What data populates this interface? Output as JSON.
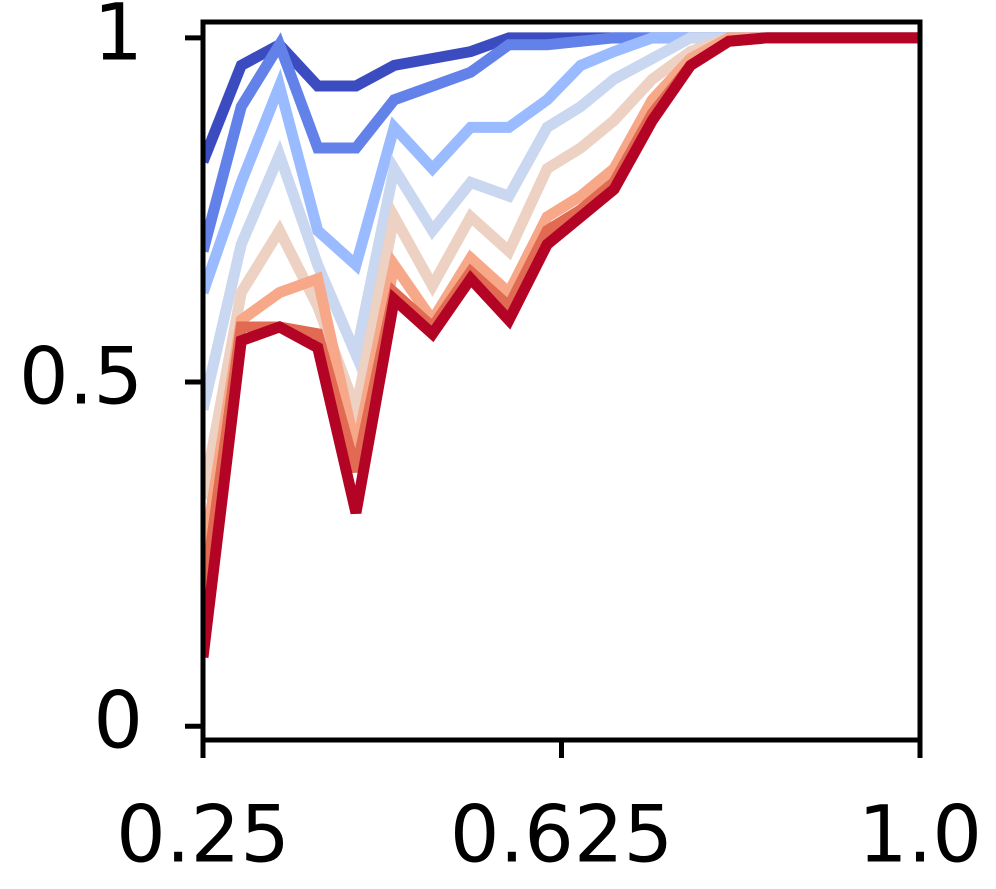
{
  "chart_data": {
    "type": "line",
    "x": [
      0.25,
      0.29,
      0.33,
      0.37,
      0.41,
      0.45,
      0.49,
      0.53,
      0.57,
      0.61,
      0.645,
      0.68,
      0.72,
      0.76,
      0.8,
      0.84,
      0.88,
      0.92,
      0.96,
      1.0
    ],
    "series": [
      {
        "color": "#3b4cc0",
        "values": [
          0.82,
          0.96,
          0.99,
          0.93,
          0.93,
          0.96,
          0.97,
          0.98,
          1,
          1,
          1,
          1,
          1,
          1,
          1,
          1,
          1,
          1,
          1,
          1
        ]
      },
      {
        "color": "#6282ea",
        "values": [
          0.69,
          0.9,
          0.99,
          0.84,
          0.84,
          0.91,
          0.93,
          0.95,
          0.99,
          0.99,
          0.995,
          1,
          1,
          1,
          1,
          1,
          1,
          1,
          1,
          1
        ]
      },
      {
        "color": "#9abbff",
        "values": [
          0.63,
          0.79,
          0.93,
          0.72,
          0.67,
          0.87,
          0.81,
          0.87,
          0.87,
          0.91,
          0.96,
          0.98,
          1,
          1,
          1,
          1,
          1,
          1,
          1,
          1
        ]
      },
      {
        "color": "#c9d7f0",
        "values": [
          0.46,
          0.7,
          0.83,
          0.67,
          0.54,
          0.81,
          0.72,
          0.79,
          0.77,
          0.87,
          0.9,
          0.94,
          0.97,
          1,
          1,
          1,
          1,
          1,
          1,
          1
        ]
      },
      {
        "color": "#edd1c2",
        "values": [
          0.33,
          0.63,
          0.72,
          0.61,
          0.46,
          0.74,
          0.64,
          0.74,
          0.69,
          0.81,
          0.84,
          0.88,
          0.94,
          0.98,
          1,
          1,
          1,
          1,
          1,
          1
        ]
      },
      {
        "color": "#f7a889",
        "values": [
          0.24,
          0.59,
          0.63,
          0.65,
          0.4,
          0.67,
          0.59,
          0.68,
          0.63,
          0.74,
          0.77,
          0.81,
          0.91,
          0.97,
          1,
          1,
          1,
          1,
          1,
          1
        ]
      },
      {
        "color": "#e26952",
        "values": [
          0.18,
          0.58,
          0.58,
          0.57,
          0.37,
          0.63,
          0.58,
          0.66,
          0.61,
          0.72,
          0.75,
          0.79,
          0.89,
          0.96,
          0.995,
          1,
          1,
          1,
          1,
          1
        ]
      },
      {
        "color": "#b40426",
        "values": [
          0.1,
          0.56,
          0.58,
          0.55,
          0.31,
          0.62,
          0.57,
          0.65,
          0.59,
          0.7,
          0.74,
          0.78,
          0.88,
          0.96,
          0.995,
          1,
          1,
          1,
          1,
          1
        ]
      }
    ],
    "xlim": [
      0.25,
      1.0
    ],
    "ylim": [
      -0.02,
      1.023
    ],
    "xticks": [
      0.25,
      0.625,
      {
        "value": 1,
        "label": "1.0"
      }
    ],
    "yticks": [
      0,
      0.5,
      1
    ]
  }
}
